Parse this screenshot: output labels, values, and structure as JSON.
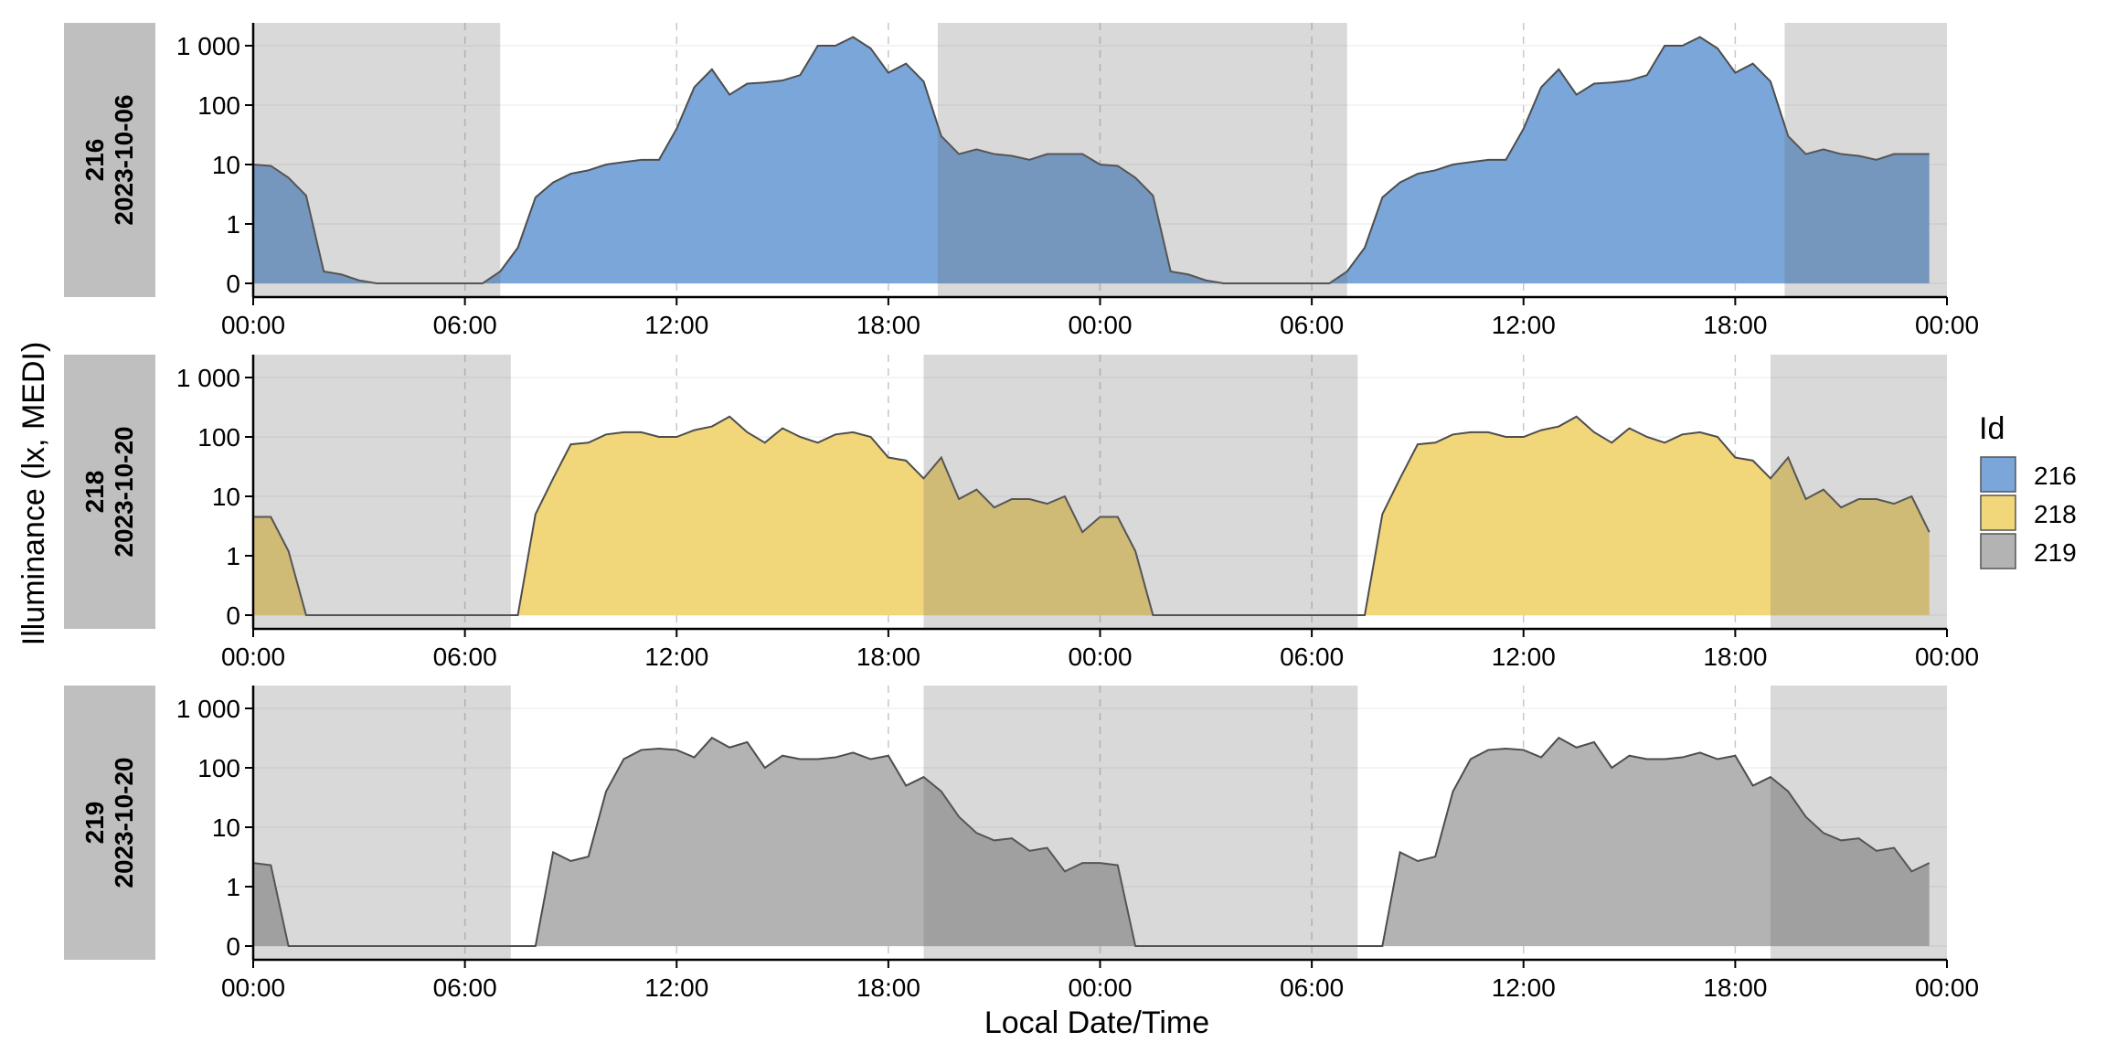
{
  "chart_data": {
    "type": "area",
    "xlabel": "Local Date/Time",
    "ylabel": "Illuminance (lx, MEDI)",
    "x_tick_labels": [
      "00:00",
      "06:00",
      "12:00",
      "18:00",
      "00:00",
      "06:00",
      "12:00",
      "18:00",
      "00:00"
    ],
    "x_range_hours": [
      0,
      48
    ],
    "y_scale": "symlog",
    "y_tick_values": [
      0,
      1,
      10,
      100,
      1000
    ],
    "y_tick_labels": [
      "0",
      "1",
      "10",
      "100",
      "1 000"
    ],
    "legend": {
      "title": "Id",
      "placement": "right",
      "entries": [
        {
          "label": "216",
          "color": "#7aa6d9"
        },
        {
          "label": "218",
          "color": "#f2d67a"
        },
        {
          "label": "219",
          "color": "#b3b3b3"
        }
      ]
    },
    "panels": [
      {
        "id": "216",
        "date": "2023-10-06",
        "color": "#7aa6d9",
        "night_shading_hours": [
          [
            0,
            7
          ],
          [
            19.4,
            31
          ],
          [
            43.4,
            48
          ]
        ],
        "x_hours": [
          0,
          0.5,
          1,
          1.5,
          2,
          2.5,
          3,
          3.5,
          4,
          4.5,
          5,
          5.5,
          6,
          6.5,
          7,
          7.5,
          8,
          8.5,
          9,
          9.5,
          10,
          10.5,
          11,
          11.5,
          12,
          12.5,
          13,
          13.5,
          14,
          14.5,
          15,
          15.5,
          16,
          16.5,
          17,
          17.5,
          18,
          18.5,
          19,
          19.5,
          20,
          20.5,
          21,
          21.5,
          22,
          22.5,
          23,
          23.5,
          24,
          24.5,
          25,
          25.5,
          26,
          26.5,
          27,
          27.5,
          28,
          28.5,
          29,
          29.5,
          30,
          30.5,
          31,
          31.5,
          32,
          32.5,
          33,
          33.5,
          34,
          34.5,
          35,
          35.5,
          36,
          36.5,
          37,
          37.5,
          38,
          38.5,
          39,
          39.5,
          40,
          40.5,
          41,
          41.5,
          42,
          42.5,
          43,
          43.5,
          44,
          44.5,
          45,
          45.5,
          46,
          46.5,
          47,
          47.5
        ],
        "values": [
          10,
          9.5,
          6,
          3,
          0.2,
          0.15,
          0.05,
          0,
          0,
          0,
          0,
          0,
          0,
          0,
          0.2,
          0.6,
          2.8,
          5,
          7,
          8,
          10,
          11,
          12,
          12,
          40,
          200,
          400,
          150,
          230,
          240,
          260,
          320,
          1000,
          1000,
          1400,
          900,
          350,
          500,
          250,
          30,
          15,
          18,
          15,
          14,
          12,
          15,
          15,
          15,
          10,
          9.5,
          6,
          3,
          0.2,
          0.15,
          0.05,
          0,
          0,
          0,
          0,
          0,
          0,
          0,
          0.2,
          0.6,
          2.8,
          5,
          7,
          8,
          10,
          11,
          12,
          12,
          40,
          200,
          400,
          150,
          230,
          240,
          260,
          320,
          1000,
          1000,
          1400,
          900,
          350,
          500,
          250,
          30,
          15,
          18,
          15,
          14,
          12,
          15,
          15,
          15
        ]
      },
      {
        "id": "218",
        "date": "2023-10-20",
        "color": "#f2d67a",
        "night_shading_hours": [
          [
            0,
            7.3
          ],
          [
            19,
            31.3
          ],
          [
            43,
            48
          ]
        ],
        "x_hours": [
          0,
          0.5,
          1,
          1.5,
          2,
          2.5,
          3,
          3.5,
          4,
          4.5,
          5,
          5.5,
          6,
          6.5,
          7,
          7.5,
          8,
          8.5,
          9,
          9.5,
          10,
          10.5,
          11,
          11.5,
          12,
          12.5,
          13,
          13.5,
          14,
          14.5,
          15,
          15.5,
          16,
          16.5,
          17,
          17.5,
          18,
          18.5,
          19,
          19.5,
          20,
          20.5,
          21,
          21.5,
          22,
          22.5,
          23,
          23.5,
          24,
          24.5,
          25,
          25.5,
          26,
          26.5,
          27,
          27.5,
          28,
          28.5,
          29,
          29.5,
          30,
          30.5,
          31,
          31.5,
          32,
          32.5,
          33,
          33.5,
          34,
          34.5,
          35,
          35.5,
          36,
          36.5,
          37,
          37.5,
          38,
          38.5,
          39,
          39.5,
          40,
          40.5,
          41,
          41.5,
          42,
          42.5,
          43,
          43.5,
          44,
          44.5,
          45,
          45.5,
          46,
          46.5,
          47,
          47.5
        ],
        "values": [
          4.5,
          4.5,
          1.2,
          0,
          0,
          0,
          0,
          0,
          0,
          0,
          0,
          0,
          0,
          0,
          0,
          0,
          5,
          20,
          75,
          80,
          110,
          120,
          120,
          100,
          100,
          130,
          150,
          220,
          120,
          80,
          140,
          100,
          80,
          110,
          120,
          100,
          45,
          40,
          20,
          45,
          9,
          13,
          6.5,
          9,
          9,
          7.5,
          10,
          2.5,
          4.5,
          4.5,
          1.2,
          0,
          0,
          0,
          0,
          0,
          0,
          0,
          0,
          0,
          0,
          0,
          0,
          0,
          5,
          20,
          75,
          80,
          110,
          120,
          120,
          100,
          100,
          130,
          150,
          220,
          120,
          80,
          140,
          100,
          80,
          110,
          120,
          100,
          45,
          40,
          20,
          45,
          9,
          13,
          6.5,
          9,
          9,
          7.5,
          10,
          2.5
        ]
      },
      {
        "id": "219",
        "date": "2023-10-20",
        "color": "#b3b3b3",
        "night_shading_hours": [
          [
            0,
            7.3
          ],
          [
            19,
            31.3
          ],
          [
            43,
            48
          ]
        ],
        "x_hours": [
          0,
          0.5,
          1,
          1.5,
          2,
          2.5,
          3,
          3.5,
          4,
          4.5,
          5,
          5.5,
          6,
          6.5,
          7,
          7.5,
          8,
          8.5,
          9,
          9.5,
          10,
          10.5,
          11,
          11.5,
          12,
          12.5,
          13,
          13.5,
          14,
          14.5,
          15,
          15.5,
          16,
          16.5,
          17,
          17.5,
          18,
          18.5,
          19,
          19.5,
          20,
          20.5,
          21,
          21.5,
          22,
          22.5,
          23,
          23.5,
          24,
          24.5,
          25,
          25.5,
          26,
          26.5,
          27,
          27.5,
          28,
          28.5,
          29,
          29.5,
          30,
          30.5,
          31,
          31.5,
          32,
          32.5,
          33,
          33.5,
          34,
          34.5,
          35,
          35.5,
          36,
          36.5,
          37,
          37.5,
          38,
          38.5,
          39,
          39.5,
          40,
          40.5,
          41,
          41.5,
          42,
          42.5,
          43,
          43.5,
          44,
          44.5,
          45,
          45.5,
          46,
          46.5,
          47,
          47.5
        ],
        "values": [
          2.5,
          2.3,
          0,
          0,
          0,
          0,
          0,
          0,
          0,
          0,
          0,
          0,
          0,
          0,
          0,
          0,
          0,
          3.8,
          2.7,
          3.2,
          40,
          140,
          200,
          210,
          200,
          150,
          320,
          220,
          270,
          100,
          160,
          140,
          140,
          150,
          180,
          140,
          160,
          50,
          70,
          40,
          15,
          8,
          6,
          6.5,
          4,
          4.5,
          1.8,
          2.5,
          2.5,
          2.3,
          0,
          0,
          0,
          0,
          0,
          0,
          0,
          0,
          0,
          0,
          0,
          0,
          0,
          0,
          0,
          3.8,
          2.7,
          3.2,
          40,
          140,
          200,
          210,
          200,
          150,
          320,
          220,
          270,
          100,
          160,
          140,
          140,
          150,
          180,
          140,
          160,
          50,
          70,
          40,
          15,
          8,
          6,
          6.5,
          4,
          4.5,
          1.8,
          2.5
        ]
      }
    ]
  }
}
